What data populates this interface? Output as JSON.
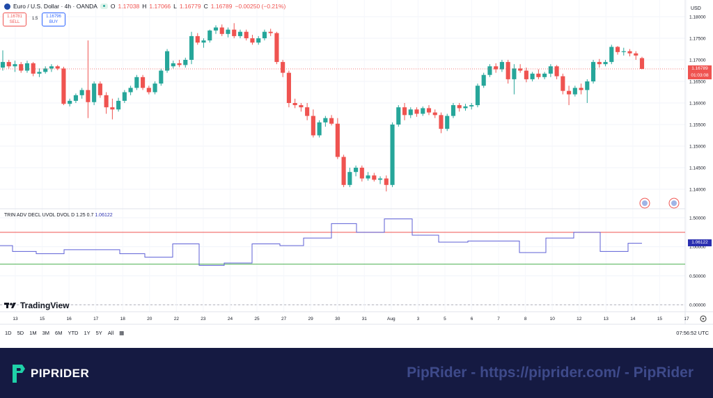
{
  "header": {
    "symbol": "Euro / U.S. Dollar · 4h · OANDA",
    "o_label": "O",
    "o": "1.17038",
    "h_label": "H",
    "h": "1.17066",
    "l_label": "L",
    "l": "1.16779",
    "c_label": "C",
    "c": "1.16789",
    "change": "−0.00250 (−0.21%)"
  },
  "trade": {
    "sell_price": "1.16781",
    "sell_label": "SELL",
    "spread": "1.5",
    "buy_price": "1.16796",
    "buy_label": "BUY"
  },
  "axis_currency": "USD",
  "current_price": {
    "value": "1.16789",
    "countdown": "01:03:08"
  },
  "indicator": {
    "label": "TRIN ADV DECL UVOL DVOL D 1.25 0.7",
    "value": "1.06122"
  },
  "timeframes": [
    "1D",
    "5D",
    "1M",
    "3M",
    "6M",
    "YTD",
    "1Y",
    "5Y",
    "All"
  ],
  "clock": "07:56:52 UTC",
  "logo": "TradingView",
  "footer": {
    "brand": "PIPRIDER",
    "watermark": "PipRider - https://piprider.com/ - PipRider"
  },
  "colors": {
    "up": "#26a69a",
    "down": "#ef5350",
    "trin": "#5c5fd6",
    "footer_bg": "#151a42"
  },
  "chart_data": [
    {
      "type": "candlestick",
      "title": "Euro / U.S. Dollar · 4h · OANDA",
      "ylim": [
        1.137,
        1.1825
      ],
      "yticks": [
        "1.18000",
        "1.17500",
        "1.17000",
        "1.16500",
        "1.16000",
        "1.15500",
        "1.15000",
        "1.14500",
        "1.14000"
      ],
      "xticks": [
        "13",
        "15",
        "16",
        "17",
        "18",
        "20",
        "22",
        "23",
        "24",
        "25",
        "27",
        "29",
        "30",
        "31",
        "Aug",
        "3",
        "5",
        "6",
        "7",
        "8",
        "10",
        "12",
        "13",
        "14",
        "15",
        "17"
      ],
      "candles": [
        [
          1.1682,
          1.1722,
          1.1675,
          1.1695
        ],
        [
          1.1695,
          1.17,
          1.168,
          1.1685
        ],
        [
          1.1685,
          1.1698,
          1.1672,
          1.169
        ],
        [
          1.169,
          1.1695,
          1.167,
          1.1675
        ],
        [
          1.1675,
          1.1698,
          1.167,
          1.1692
        ],
        [
          1.1692,
          1.1695,
          1.1662,
          1.1668
        ],
        [
          1.1668,
          1.168,
          1.166,
          1.1672
        ],
        [
          1.1672,
          1.1685,
          1.1668,
          1.168
        ],
        [
          1.168,
          1.169,
          1.1672,
          1.1685
        ],
        [
          1.1685,
          1.1688,
          1.1676,
          1.168
        ],
        [
          1.168,
          1.1684,
          1.1595,
          1.1598
        ],
        [
          1.1598,
          1.161,
          1.1592,
          1.1605
        ],
        [
          1.1605,
          1.1622,
          1.16,
          1.1618
        ],
        [
          1.1618,
          1.1635,
          1.161,
          1.163
        ],
        [
          1.163,
          1.1745,
          1.1565,
          1.1602
        ],
        [
          1.1602,
          1.165,
          1.1595,
          1.1645
        ],
        [
          1.1645,
          1.165,
          1.1612,
          1.1618
        ],
        [
          1.1618,
          1.1625,
          1.1575,
          1.159
        ],
        [
          1.159,
          1.161,
          1.1562,
          1.1585
        ],
        [
          1.1585,
          1.1612,
          1.158,
          1.1605
        ],
        [
          1.1605,
          1.163,
          1.16,
          1.1625
        ],
        [
          1.1625,
          1.164,
          1.1618,
          1.1635
        ],
        [
          1.1635,
          1.1665,
          1.163,
          1.166
        ],
        [
          1.166,
          1.1665,
          1.163,
          1.1635
        ],
        [
          1.1635,
          1.164,
          1.162,
          1.1625
        ],
        [
          1.1625,
          1.165,
          1.162,
          1.1645
        ],
        [
          1.1645,
          1.168,
          1.164,
          1.1675
        ],
        [
          1.1675,
          1.1725,
          1.167,
          1.172
        ],
        [
          1.1685,
          1.1698,
          1.168,
          1.1692
        ],
        [
          1.1692,
          1.17,
          1.1683,
          1.1688
        ],
        [
          1.1688,
          1.1705,
          1.1682,
          1.17
        ],
        [
          1.17,
          1.1765,
          1.169,
          1.1755
        ],
        [
          1.1755,
          1.1762,
          1.1735,
          1.174
        ],
        [
          1.174,
          1.175,
          1.1728,
          1.1745
        ],
        [
          1.1745,
          1.177,
          1.174,
          1.1768
        ],
        [
          1.1768,
          1.178,
          1.176,
          1.1775
        ],
        [
          1.1775,
          1.1782,
          1.1755,
          1.176
        ],
        [
          1.176,
          1.1775,
          1.1752,
          1.177
        ],
        [
          1.177,
          1.1785,
          1.175,
          1.1755
        ],
        [
          1.1755,
          1.177,
          1.175,
          1.1765
        ],
        [
          1.1765,
          1.177,
          1.1745,
          1.175
        ],
        [
          1.175,
          1.1758,
          1.1735,
          1.174
        ],
        [
          1.174,
          1.1755,
          1.1735,
          1.175
        ],
        [
          1.175,
          1.177,
          1.1745,
          1.1765
        ],
        [
          1.1765,
          1.1772,
          1.1755,
          1.1762
        ],
        [
          1.1762,
          1.1765,
          1.169,
          1.1695
        ],
        [
          1.1695,
          1.17,
          1.166,
          1.167
        ],
        [
          1.167,
          1.1675,
          1.159,
          1.16
        ],
        [
          1.16,
          1.161,
          1.1588,
          1.1595
        ],
        [
          1.1595,
          1.16,
          1.158,
          1.159
        ],
        [
          1.159,
          1.16,
          1.156,
          1.157
        ],
        [
          1.157,
          1.1585,
          1.152,
          1.1525
        ],
        [
          1.1525,
          1.156,
          1.152,
          1.1555
        ],
        [
          1.1555,
          1.157,
          1.1545,
          1.1565
        ],
        [
          1.1565,
          1.1572,
          1.1548,
          1.1552
        ],
        [
          1.1552,
          1.1565,
          1.147,
          1.1475
        ],
        [
          1.1475,
          1.148,
          1.1405,
          1.141
        ],
        [
          1.141,
          1.145,
          1.1405,
          1.144
        ],
        [
          1.144,
          1.1455,
          1.143,
          1.145
        ],
        [
          1.145,
          1.1455,
          1.1418,
          1.1425
        ],
        [
          1.1425,
          1.144,
          1.142,
          1.1432
        ],
        [
          1.1432,
          1.1438,
          1.1418,
          1.1422
        ],
        [
          1.1422,
          1.143,
          1.1412,
          1.1425
        ],
        [
          1.1425,
          1.1432,
          1.1395,
          1.141
        ],
        [
          1.141,
          1.1555,
          1.1405,
          1.155
        ],
        [
          1.155,
          1.1595,
          1.1545,
          1.159
        ],
        [
          1.159,
          1.16,
          1.156,
          1.1572
        ],
        [
          1.1572,
          1.159,
          1.1565,
          1.1585
        ],
        [
          1.1585,
          1.159,
          1.1568,
          1.1575
        ],
        [
          1.1575,
          1.1592,
          1.157,
          1.1588
        ],
        [
          1.1588,
          1.1595,
          1.1572,
          1.1578
        ],
        [
          1.1578,
          1.1585,
          1.1565,
          1.1572
        ],
        [
          1.1572,
          1.1578,
          1.153,
          1.154
        ],
        [
          1.154,
          1.1575,
          1.1535,
          1.157
        ],
        [
          1.157,
          1.16,
          1.1565,
          1.1595
        ],
        [
          1.1595,
          1.16,
          1.158,
          1.1588
        ],
        [
          1.1588,
          1.1598,
          1.1582,
          1.1592
        ],
        [
          1.1592,
          1.16,
          1.1585,
          1.1595
        ],
        [
          1.1595,
          1.1645,
          1.159,
          1.164
        ],
        [
          1.164,
          1.167,
          1.1635,
          1.1665
        ],
        [
          1.1665,
          1.169,
          1.166,
          1.1685
        ],
        [
          1.1685,
          1.1692,
          1.167,
          1.1678
        ],
        [
          1.1678,
          1.17,
          1.1672,
          1.1695
        ],
        [
          1.1695,
          1.17,
          1.1645,
          1.1655
        ],
        [
          1.1655,
          1.169,
          1.162,
          1.168
        ],
        [
          1.168,
          1.169,
          1.167,
          1.1675
        ],
        [
          1.1675,
          1.1682,
          1.1648,
          1.1655
        ],
        [
          1.1655,
          1.1672,
          1.165,
          1.1668
        ],
        [
          1.1668,
          1.1678,
          1.1655,
          1.166
        ],
        [
          1.166,
          1.1672,
          1.1655,
          1.1668
        ],
        [
          1.1668,
          1.169,
          1.166,
          1.1685
        ],
        [
          1.1685,
          1.1688,
          1.1655,
          1.1662
        ],
        [
          1.1662,
          1.1668,
          1.162,
          1.1628
        ],
        [
          1.1628,
          1.164,
          1.1595,
          1.162
        ],
        [
          1.162,
          1.164,
          1.1615,
          1.1635
        ],
        [
          1.1635,
          1.1645,
          1.162,
          1.163
        ],
        [
          1.163,
          1.1655,
          1.16,
          1.165
        ],
        [
          1.165,
          1.17,
          1.1645,
          1.1695
        ],
        [
          1.1695,
          1.1702,
          1.1682,
          1.169
        ],
        [
          1.169,
          1.17,
          1.1685,
          1.1695
        ],
        [
          1.1695,
          1.1735,
          1.169,
          1.173
        ],
        [
          1.173,
          1.1732,
          1.1712,
          1.1718
        ],
        [
          1.1718,
          1.1728,
          1.171,
          1.172
        ],
        [
          1.172,
          1.1725,
          1.1708,
          1.1715
        ],
        [
          1.1715,
          1.172,
          1.17,
          1.171
        ],
        [
          1.1704,
          1.1707,
          1.1678,
          1.1679
        ]
      ]
    },
    {
      "type": "line",
      "title": "TRIN ADV DECL UVOL DVOL D 1.25 0.7",
      "ylim": [
        0.0,
        1.55
      ],
      "yticks": [
        "1.50000",
        "1.00000",
        "0.50000",
        "0.00000"
      ],
      "upper_level": 1.25,
      "lower_level": 0.7,
      "steps": [
        [
          0,
          1.02
        ],
        [
          18,
          0.92
        ],
        [
          52,
          0.88
        ],
        [
          92,
          0.95
        ],
        [
          172,
          0.88
        ],
        [
          208,
          0.82
        ],
        [
          248,
          1.05
        ],
        [
          286,
          0.68
        ],
        [
          322,
          0.72
        ],
        [
          362,
          1.05
        ],
        [
          402,
          1.02
        ],
        [
          436,
          1.15
        ],
        [
          476,
          1.4
        ],
        [
          512,
          1.25
        ],
        [
          552,
          1.48
        ],
        [
          592,
          1.2
        ],
        [
          630,
          1.08
        ],
        [
          672,
          1.1
        ],
        [
          712,
          1.1
        ],
        [
          746,
          0.9
        ],
        [
          784,
          1.15
        ],
        [
          824,
          1.25
        ],
        [
          862,
          0.92
        ],
        [
          902,
          1.06
        ],
        [
          922,
          1.06
        ]
      ]
    }
  ]
}
